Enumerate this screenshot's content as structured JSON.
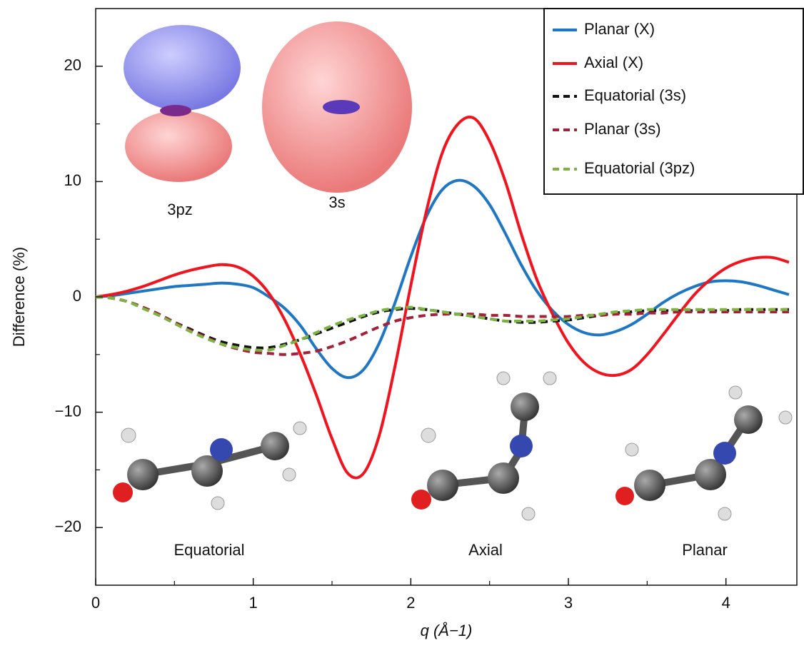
{
  "chart_data": {
    "type": "line",
    "x": [
      0,
      0.1,
      0.2,
      0.3,
      0.4,
      0.5,
      0.6,
      0.7,
      0.8,
      0.9,
      1.0,
      1.1,
      1.2,
      1.3,
      1.4,
      1.5,
      1.6,
      1.7,
      1.8,
      1.9,
      2.0,
      2.1,
      2.2,
      2.3,
      2.4,
      2.5,
      2.6,
      2.7,
      2.8,
      2.9,
      3.0,
      3.1,
      3.2,
      3.3,
      3.4,
      3.5,
      3.6,
      3.7,
      3.8,
      3.9,
      4.0,
      4.1,
      4.2,
      4.3,
      4.4
    ],
    "series": [
      {
        "name": "Planar (X)",
        "color": "#1f77c4",
        "dash": false,
        "values": [
          0,
          0.1,
          0.3,
          0.5,
          0.7,
          0.9,
          1.0,
          1.1,
          1.2,
          1.1,
          0.8,
          0,
          -1,
          -2.5,
          -4.5,
          -6.2,
          -7,
          -6.3,
          -4,
          -0.5,
          3.5,
          7,
          9.3,
          10.1,
          9.6,
          8,
          5.5,
          2.8,
          0.5,
          -1.2,
          -2.4,
          -3.1,
          -3.3,
          -3.0,
          -2.4,
          -1.5,
          -0.5,
          0.3,
          0.9,
          1.3,
          1.4,
          1.3,
          1.0,
          0.6,
          0.2
        ]
      },
      {
        "name": "Axial (X)",
        "color": "#f0141e",
        "dash": false,
        "values": [
          0,
          0.2,
          0.5,
          0.9,
          1.4,
          1.9,
          2.3,
          2.6,
          2.8,
          2.6,
          1.8,
          0.3,
          -2,
          -5,
          -8.5,
          -12.3,
          -15.3,
          -15.3,
          -12,
          -6,
          1,
          7.5,
          12.5,
          15,
          15.5,
          13.5,
          10,
          5.5,
          1.5,
          -1.5,
          -4,
          -5.7,
          -6.6,
          -6.8,
          -6.3,
          -5,
          -3.3,
          -1.5,
          0.2,
          1.5,
          2.5,
          3.1,
          3.4,
          3.4,
          3.0
        ]
      },
      {
        "name": "Equatorial (3s)",
        "color": "#111111",
        "dash": true,
        "values": [
          0,
          -0.1,
          -0.4,
          -0.9,
          -1.5,
          -2.2,
          -2.8,
          -3.4,
          -3.9,
          -4.2,
          -4.4,
          -4.4,
          -4.1,
          -3.7,
          -3.2,
          -2.7,
          -2.2,
          -1.7,
          -1.3,
          -1.1,
          -1.0,
          -1.1,
          -1.3,
          -1.5,
          -1.7,
          -1.9,
          -2.1,
          -2.2,
          -2.2,
          -2.1,
          -2.0,
          -1.8,
          -1.6,
          -1.4,
          -1.3,
          -1.2,
          -1.2,
          -1.2,
          -1.2,
          -1.2,
          -1.2,
          -1.1,
          -1.1,
          -1.1,
          -1.1
        ]
      },
      {
        "name": "Planar (3s)",
        "color": "#a3213a",
        "dash": true,
        "values": [
          0,
          -0.1,
          -0.4,
          -0.9,
          -1.5,
          -2.2,
          -2.9,
          -3.5,
          -4.1,
          -4.5,
          -4.8,
          -4.9,
          -5.0,
          -4.9,
          -4.7,
          -4.3,
          -3.8,
          -3.2,
          -2.6,
          -2.1,
          -1.8,
          -1.6,
          -1.5,
          -1.5,
          -1.5,
          -1.6,
          -1.6,
          -1.7,
          -1.7,
          -1.7,
          -1.7,
          -1.6,
          -1.6,
          -1.5,
          -1.5,
          -1.4,
          -1.4,
          -1.3,
          -1.3,
          -1.3,
          -1.3,
          -1.3,
          -1.3,
          -1.3,
          -1.3
        ]
      },
      {
        "name": "Equatorial (3pz)",
        "color": "#7cb342",
        "dash": true,
        "values": [
          0,
          -0.1,
          -0.4,
          -1.0,
          -1.6,
          -2.3,
          -3.0,
          -3.6,
          -4.1,
          -4.4,
          -4.6,
          -4.6,
          -4.2,
          -3.7,
          -3.1,
          -2.5,
          -2.0,
          -1.6,
          -1.2,
          -1.0,
          -0.9,
          -1.1,
          -1.3,
          -1.5,
          -1.7,
          -1.9,
          -2.1,
          -2.1,
          -2.1,
          -2.0,
          -1.9,
          -1.7,
          -1.5,
          -1.3,
          -1.2,
          -1.1,
          -1.1,
          -1.1,
          -1.1,
          -1.1,
          -1.1,
          -1.1,
          -1.1,
          -1.1,
          -1.1
        ]
      }
    ],
    "xlabel": "q (Å−1)",
    "ylabel": "Difference (%)",
    "xlim": [
      0,
      4.45
    ],
    "xticks": [
      0,
      1,
      2,
      3,
      4
    ],
    "xminorticks": [
      0.5,
      1.5,
      2.5,
      3.5
    ],
    "ylim": [
      -25,
      25
    ],
    "yticks": [
      {
        "value": -20,
        "label": "−20"
      },
      {
        "value": -10,
        "label": "−10"
      },
      0,
      10,
      20
    ],
    "yminorticks": [
      -15,
      -5,
      5,
      15
    ],
    "legend": "upper right",
    "annotations": [
      "3pz",
      "3s",
      "Equatorial",
      "Axial",
      "Planar"
    ]
  }
}
